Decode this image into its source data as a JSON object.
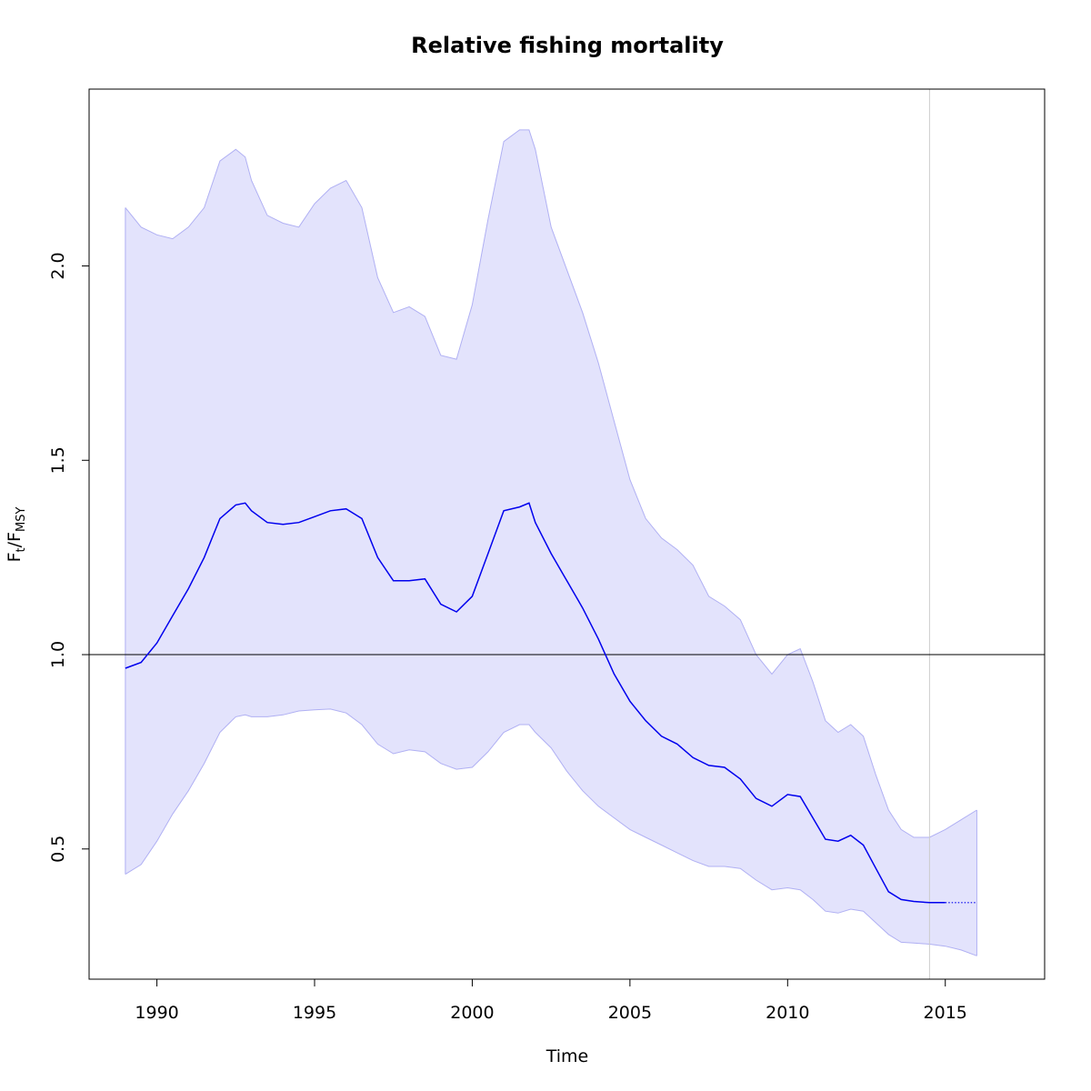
{
  "chart_data": {
    "type": "area",
    "title": "Relative fishing mortality",
    "xlabel": "Time",
    "ylabel": {
      "main": "F",
      "sub1": "t",
      "slash": "/F",
      "sub2": "MSY"
    },
    "xlim": [
      1987.85,
      2018.15
    ],
    "ylim": [
      0.165,
      2.455
    ],
    "x_ticks": [
      1990,
      1995,
      2000,
      2005,
      2010,
      2015
    ],
    "y_ticks": [
      0.5,
      1.0,
      1.5,
      2.0
    ],
    "y_tick_labels": [
      "0.5",
      "1.0",
      "1.5",
      "2.0"
    ],
    "reference_line": {
      "y": 1.0,
      "color": "#000000"
    },
    "vertical_line": {
      "x": 2014.5,
      "color": "#cccccc"
    },
    "grid": false,
    "colors": {
      "estimate": "#0000ee",
      "band_fill": "#e3e3fc",
      "band_edge": "#b0b0f3"
    },
    "series": [
      {
        "role": "estimate",
        "x": [
          1989.0,
          1989.5,
          1990.0,
          1990.5,
          1991.0,
          1991.5,
          1992.0,
          1992.5,
          1992.8,
          1993.0,
          1993.5,
          1994.0,
          1994.5,
          1995.0,
          1995.5,
          1996.0,
          1996.5,
          1997.0,
          1997.5,
          1998.0,
          1998.5,
          1999.0,
          1999.5,
          2000.0,
          2000.5,
          2001.0,
          2001.5,
          2001.8,
          2002.0,
          2002.5,
          2003.0,
          2003.5,
          2004.0,
          2004.5,
          2005.0,
          2005.5,
          2006.0,
          2006.5,
          2007.0,
          2007.5,
          2008.0,
          2008.5,
          2009.0,
          2009.5,
          2010.0,
          2010.4,
          2010.8,
          2011.2,
          2011.6,
          2012.0,
          2012.4,
          2012.8,
          2013.2,
          2013.6,
          2014.0,
          2014.5,
          2015.0
        ],
        "y": [
          0.965,
          0.98,
          1.03,
          1.1,
          1.17,
          1.25,
          1.35,
          1.385,
          1.39,
          1.37,
          1.34,
          1.335,
          1.34,
          1.355,
          1.37,
          1.375,
          1.35,
          1.25,
          1.19,
          1.19,
          1.195,
          1.13,
          1.11,
          1.15,
          1.26,
          1.37,
          1.38,
          1.39,
          1.34,
          1.26,
          1.19,
          1.12,
          1.04,
          0.95,
          0.88,
          0.83,
          0.79,
          0.77,
          0.735,
          0.715,
          0.71,
          0.68,
          0.63,
          0.61,
          0.64,
          0.635,
          0.58,
          0.525,
          0.52,
          0.535,
          0.51,
          0.45,
          0.39,
          0.37,
          0.365,
          0.362,
          0.362
        ]
      },
      {
        "role": "forecast",
        "x": [
          2015.0,
          2016.0
        ],
        "y": [
          0.362,
          0.362
        ]
      },
      {
        "role": "upper",
        "x": [
          1989.0,
          1989.5,
          1990.0,
          1990.5,
          1991.0,
          1991.5,
          1992.0,
          1992.5,
          1992.8,
          1993.0,
          1993.5,
          1994.0,
          1994.5,
          1995.0,
          1995.5,
          1996.0,
          1996.5,
          1997.0,
          1997.5,
          1998.0,
          1998.5,
          1999.0,
          1999.5,
          2000.0,
          2000.5,
          2001.0,
          2001.5,
          2001.8,
          2002.0,
          2002.5,
          2003.0,
          2003.5,
          2004.0,
          2004.5,
          2005.0,
          2005.5,
          2006.0,
          2006.5,
          2007.0,
          2007.5,
          2008.0,
          2008.5,
          2009.0,
          2009.5,
          2010.0,
          2010.4,
          2010.8,
          2011.2,
          2011.6,
          2012.0,
          2012.4,
          2012.8,
          2013.2,
          2013.6,
          2014.0,
          2014.5,
          2015.0,
          2015.5,
          2016.0
        ],
        "y": [
          2.15,
          2.1,
          2.08,
          2.07,
          2.1,
          2.15,
          2.27,
          2.3,
          2.28,
          2.22,
          2.13,
          2.11,
          2.1,
          2.16,
          2.2,
          2.22,
          2.15,
          1.97,
          1.88,
          1.895,
          1.87,
          1.77,
          1.76,
          1.9,
          2.12,
          2.32,
          2.35,
          2.35,
          2.3,
          2.1,
          1.99,
          1.88,
          1.75,
          1.6,
          1.45,
          1.35,
          1.3,
          1.27,
          1.23,
          1.15,
          1.125,
          1.09,
          1.0,
          0.95,
          1.0,
          1.015,
          0.93,
          0.83,
          0.8,
          0.82,
          0.79,
          0.69,
          0.6,
          0.55,
          0.53,
          0.53,
          0.55,
          0.575,
          0.6
        ]
      },
      {
        "role": "lower",
        "x": [
          1989.0,
          1989.5,
          1990.0,
          1990.5,
          1991.0,
          1991.5,
          1992.0,
          1992.5,
          1992.8,
          1993.0,
          1993.5,
          1994.0,
          1994.5,
          1995.0,
          1995.5,
          1996.0,
          1996.5,
          1997.0,
          1997.5,
          1998.0,
          1998.5,
          1999.0,
          1999.5,
          2000.0,
          2000.5,
          2001.0,
          2001.5,
          2001.8,
          2002.0,
          2002.5,
          2003.0,
          2003.5,
          2004.0,
          2004.5,
          2005.0,
          2005.5,
          2006.0,
          2006.5,
          2007.0,
          2007.5,
          2008.0,
          2008.5,
          2009.0,
          2009.5,
          2010.0,
          2010.4,
          2010.8,
          2011.2,
          2011.6,
          2012.0,
          2012.4,
          2012.8,
          2013.2,
          2013.6,
          2014.0,
          2014.5,
          2015.0,
          2015.5,
          2016.0
        ],
        "y": [
          0.435,
          0.46,
          0.52,
          0.59,
          0.65,
          0.72,
          0.8,
          0.84,
          0.845,
          0.84,
          0.84,
          0.845,
          0.855,
          0.858,
          0.86,
          0.85,
          0.82,
          0.77,
          0.745,
          0.755,
          0.75,
          0.72,
          0.705,
          0.71,
          0.75,
          0.8,
          0.82,
          0.82,
          0.8,
          0.76,
          0.7,
          0.65,
          0.61,
          0.58,
          0.55,
          0.53,
          0.51,
          0.49,
          0.47,
          0.455,
          0.455,
          0.45,
          0.42,
          0.395,
          0.4,
          0.395,
          0.37,
          0.34,
          0.335,
          0.345,
          0.34,
          0.31,
          0.28,
          0.26,
          0.258,
          0.255,
          0.25,
          0.24,
          0.225
        ]
      }
    ]
  }
}
